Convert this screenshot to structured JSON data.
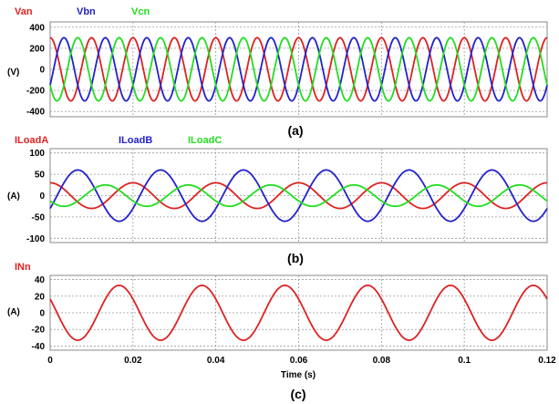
{
  "chart_data": [
    {
      "type": "line",
      "caption": "(a)",
      "ylabel": "(V)",
      "xlim": [
        0,
        0.12
      ],
      "ylim": [
        -450,
        450
      ],
      "yticks": [
        400,
        200,
        0,
        -200,
        -400
      ],
      "ytick_labels": [
        "400",
        "200",
        "0",
        "-200",
        "-400"
      ],
      "grid": true,
      "legend_placement": "top-left, above plot",
      "frequency_hz": 100,
      "series": [
        {
          "name": "Van",
          "color": "#dd2222",
          "amplitude": 300,
          "phase_deg": 90
        },
        {
          "name": "Vbn",
          "color": "#2222cc",
          "amplitude": 300,
          "phase_deg": -30
        },
        {
          "name": "Vcn",
          "color": "#22dd22",
          "amplitude": 300,
          "phase_deg": 210
        }
      ]
    },
    {
      "type": "line",
      "caption": "(b)",
      "ylabel": "(A)",
      "xlim": [
        0,
        0.12
      ],
      "ylim": [
        -110,
        110
      ],
      "yticks": [
        100,
        50,
        0,
        -50,
        -100
      ],
      "ytick_labels": [
        "100",
        "50",
        "0",
        "-50",
        "-100"
      ],
      "grid": true,
      "legend_placement": "top-left, above plot",
      "frequency_hz": 50,
      "series": [
        {
          "name": "ILoadA",
          "color": "#dd2222",
          "amplitude": 30,
          "phase_deg": 90
        },
        {
          "name": "ILoadB",
          "color": "#2222cc",
          "amplitude": 60,
          "phase_deg": -30
        },
        {
          "name": "ILoadC",
          "color": "#22dd22",
          "amplitude": 25,
          "phase_deg": 210
        }
      ]
    },
    {
      "type": "line",
      "caption": "(c)",
      "ylabel": "(A)",
      "xlabel": "Time (s)",
      "xlim": [
        0,
        0.12
      ],
      "ylim": [
        -45,
        45
      ],
      "yticks": [
        40,
        20,
        0,
        -20,
        -40
      ],
      "ytick_labels": [
        "40",
        "20",
        "0",
        "-20",
        "-40"
      ],
      "xticks": [
        0,
        0.02,
        0.04,
        0.06,
        0.08,
        0.1,
        0.12
      ],
      "xtick_labels": [
        "0",
        "0.02",
        "0.04",
        "0.06",
        "0.08",
        "0.1",
        "0.12"
      ],
      "grid": true,
      "legend_placement": "top-left, above plot",
      "frequency_hz": 50,
      "series": [
        {
          "name": "INn",
          "color": "#dd2222",
          "amplitude": 33,
          "phase_deg": 150
        }
      ]
    }
  ]
}
